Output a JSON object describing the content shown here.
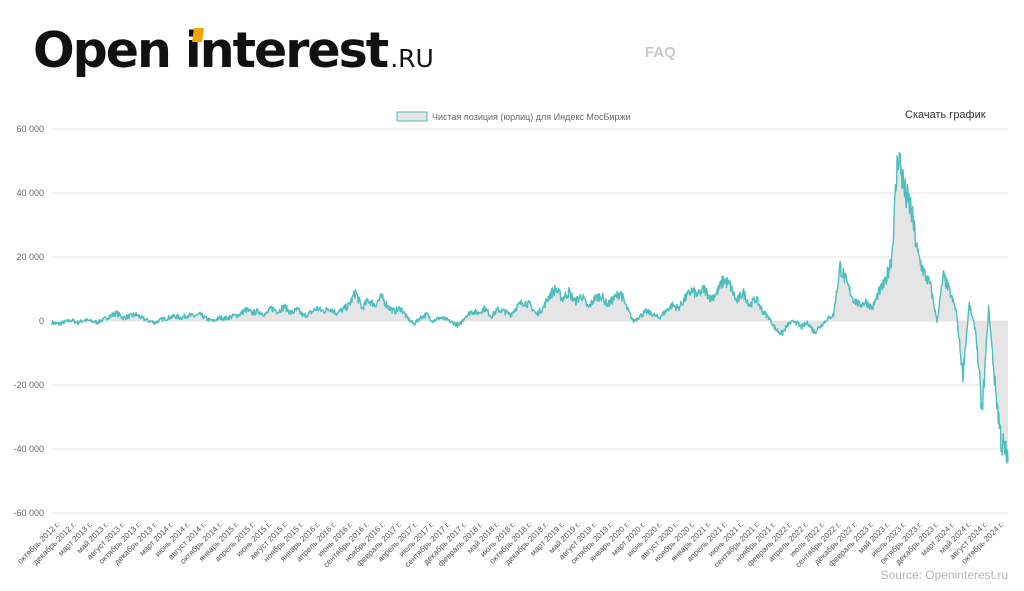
{
  "site": {
    "logo_text": "Open interest",
    "logo_suffix": ".RU",
    "nav_faq": "FAQ",
    "download_label": "Скачать график",
    "source_label": "Source: Openinterest.ru"
  },
  "colors": {
    "line": "#4dbdbd",
    "fill": "#e5e5e5",
    "grid": "#e6e6e6",
    "logo_accent": "#f5a300"
  },
  "chart_data": {
    "type": "area",
    "title": "",
    "xlabel": "",
    "ylabel": "",
    "legend": {
      "position": "top-center"
    },
    "grid": true,
    "ylim": [
      -60000,
      60000
    ],
    "y_ticks": [
      "60 000",
      "40 000",
      "20 000",
      "0",
      "-20 000",
      "-40 000",
      "-60 000"
    ],
    "x_ticks": [
      "октябрь 2012 г.",
      "декабрь 2012 г.",
      "март 2013 г.",
      "май 2013 г.",
      "август 2013 г.",
      "октябрь 2013 г.",
      "декабрь 2013 г.",
      "март 2014 г.",
      "июнь 2014 г.",
      "август 2014 г.",
      "октябрь 2014 г.",
      "январь 2015 г.",
      "апрель 2015 г.",
      "июнь 2015 г.",
      "август 2015 г.",
      "ноябрь 2015 г.",
      "январь 2016 г.",
      "апрель 2016 г.",
      "июнь 2016 г.",
      "сентябрь 2016 г.",
      "ноябрь 2016 г.",
      "февраль 2017 г.",
      "апрель 2017 г.",
      "июль 2017 г.",
      "сентябрь 2017 г.",
      "декабрь 2017 г.",
      "февраль 2018 г.",
      "май 2018 г.",
      "июль 2018 г.",
      "октябрь 2018 г.",
      "декабрь 2018 г.",
      "март 2019 г.",
      "май 2019 г.",
      "август 2019 г.",
      "октябрь 2019 г.",
      "январь 2020 г.",
      "март 2020 г.",
      "июнь 2020 г.",
      "август 2020 г.",
      "ноябрь 2020 г.",
      "январь 2021 г.",
      "апрель 2021 г.",
      "июнь 2021 г.",
      "сентябрь 2021 г.",
      "ноябрь 2021 г.",
      "февраль 2022 г.",
      "апрель 2022 г.",
      "июль 2022 г.",
      "сентябрь 2022 г.",
      "декабрь 2022 г.",
      "февраль 2023 г.",
      "май 2023 г.",
      "июль 2023 г.",
      "октябрь 2023 г.",
      "декабрь 2023 г.",
      "март 2024 г.",
      "май 2024 г.",
      "август 2024 г.",
      "октябрь 2024 г."
    ],
    "series": [
      {
        "name": "Чистая позиция (юрлиц) для Индекс МосБиржи",
        "points": [
          [
            "2012-09",
            -500
          ],
          [
            "2012-10",
            -1000
          ],
          [
            "2012-11",
            -300
          ],
          [
            "2012-12",
            200
          ],
          [
            "2013-01",
            -500
          ],
          [
            "2013-02",
            300
          ],
          [
            "2013-03",
            0
          ],
          [
            "2013-04",
            -400
          ],
          [
            "2013-05",
            500
          ],
          [
            "2013-06",
            1500
          ],
          [
            "2013-07",
            2500
          ],
          [
            "2013-08",
            1000
          ],
          [
            "2013-09",
            1500
          ],
          [
            "2013-10",
            2000
          ],
          [
            "2013-11",
            800
          ],
          [
            "2013-12",
            0
          ],
          [
            "2014-01",
            -500
          ],
          [
            "2014-02",
            500
          ],
          [
            "2014-03",
            1000
          ],
          [
            "2014-04",
            1500
          ],
          [
            "2014-05",
            1000
          ],
          [
            "2014-06",
            1800
          ],
          [
            "2014-07",
            1500
          ],
          [
            "2014-08",
            2000
          ],
          [
            "2014-09",
            500
          ],
          [
            "2014-10",
            0
          ],
          [
            "2014-11",
            1000
          ],
          [
            "2014-12",
            800
          ],
          [
            "2015-01",
            1500
          ],
          [
            "2015-02",
            2000
          ],
          [
            "2015-03",
            3500
          ],
          [
            "2015-04",
            2500
          ],
          [
            "2015-05",
            3000
          ],
          [
            "2015-06",
            2000
          ],
          [
            "2015-07",
            4000
          ],
          [
            "2015-08",
            3000
          ],
          [
            "2015-09",
            4500
          ],
          [
            "2015-10",
            2500
          ],
          [
            "2015-11",
            3500
          ],
          [
            "2015-12",
            1500
          ],
          [
            "2016-01",
            2500
          ],
          [
            "2016-02",
            4000
          ],
          [
            "2016-03",
            3000
          ],
          [
            "2016-04",
            4000
          ],
          [
            "2016-05",
            2500
          ],
          [
            "2016-06",
            3500
          ],
          [
            "2016-07",
            5000
          ],
          [
            "2016-08",
            9000
          ],
          [
            "2016-09",
            4000
          ],
          [
            "2016-10",
            6500
          ],
          [
            "2016-11",
            5000
          ],
          [
            "2016-12",
            7500
          ],
          [
            "2017-01",
            4500
          ],
          [
            "2017-02",
            3000
          ],
          [
            "2017-03",
            4000
          ],
          [
            "2017-04",
            1000
          ],
          [
            "2017-05",
            -1000
          ],
          [
            "2017-06",
            1000
          ],
          [
            "2017-07",
            2000
          ],
          [
            "2017-08",
            0
          ],
          [
            "2017-09",
            1000
          ],
          [
            "2017-10",
            500
          ],
          [
            "2017-11",
            -500
          ],
          [
            "2017-12",
            -1500
          ],
          [
            "2018-01",
            1500
          ],
          [
            "2018-02",
            3000
          ],
          [
            "2018-03",
            2500
          ],
          [
            "2018-04",
            4000
          ],
          [
            "2018-05",
            1500
          ],
          [
            "2018-06",
            3500
          ],
          [
            "2018-07",
            3000
          ],
          [
            "2018-08",
            2000
          ],
          [
            "2018-09",
            4500
          ],
          [
            "2018-10",
            6000
          ],
          [
            "2018-11",
            5000
          ],
          [
            "2018-12",
            2000
          ],
          [
            "2019-01",
            4000
          ],
          [
            "2019-02",
            8000
          ],
          [
            "2019-03",
            10000
          ],
          [
            "2019-04",
            7000
          ],
          [
            "2019-05",
            9000
          ],
          [
            "2019-06",
            6000
          ],
          [
            "2019-07",
            8000
          ],
          [
            "2019-08",
            4000
          ],
          [
            "2019-09",
            7000
          ],
          [
            "2019-10",
            8000
          ],
          [
            "2019-11",
            5000
          ],
          [
            "2019-12",
            7000
          ],
          [
            "2020-01",
            9000
          ],
          [
            "2020-02",
            4000
          ],
          [
            "2020-03",
            0
          ],
          [
            "2020-04",
            1500
          ],
          [
            "2020-05",
            3000
          ],
          [
            "2020-06",
            2000
          ],
          [
            "2020-07",
            1000
          ],
          [
            "2020-08",
            3000
          ],
          [
            "2020-09",
            5000
          ],
          [
            "2020-10",
            4000
          ],
          [
            "2020-11",
            7000
          ],
          [
            "2020-12",
            9500
          ],
          [
            "2021-01",
            8000
          ],
          [
            "2021-02",
            10000
          ],
          [
            "2021-03",
            7000
          ],
          [
            "2021-04",
            9000
          ],
          [
            "2021-05",
            13000
          ],
          [
            "2021-06",
            11000
          ],
          [
            "2021-07",
            6000
          ],
          [
            "2021-08",
            9000
          ],
          [
            "2021-09",
            5000
          ],
          [
            "2021-10",
            7000
          ],
          [
            "2021-11",
            3000
          ],
          [
            "2021-12",
            1000
          ],
          [
            "2022-01",
            -2500
          ],
          [
            "2022-02",
            -4000
          ],
          [
            "2022-03",
            -1000
          ],
          [
            "2022-04",
            0
          ],
          [
            "2022-05",
            -2000
          ],
          [
            "2022-06",
            -500
          ],
          [
            "2022-07",
            -3500
          ],
          [
            "2022-08",
            -1500
          ],
          [
            "2022-09",
            500
          ],
          [
            "2022-10",
            2000
          ],
          [
            "2022-11",
            17000
          ],
          [
            "2022-12",
            12000
          ],
          [
            "2023-01",
            7000
          ],
          [
            "2023-02",
            5000
          ],
          [
            "2023-03",
            6000
          ],
          [
            "2023-04",
            4000
          ],
          [
            "2023-05",
            9000
          ],
          [
            "2023-06",
            12000
          ],
          [
            "2023-07",
            20000
          ],
          [
            "2023-08",
            53000
          ],
          [
            "2023-09",
            40000
          ],
          [
            "2023-10",
            35000
          ],
          [
            "2023-11",
            21000
          ],
          [
            "2023-12",
            15000
          ],
          [
            "2024-01",
            11000
          ],
          [
            "2024-02",
            0
          ],
          [
            "2024-03",
            14000
          ],
          [
            "2024-04",
            9000
          ],
          [
            "2024-05",
            3000
          ],
          [
            "2024-06",
            -17000
          ],
          [
            "2024-07",
            5000
          ],
          [
            "2024-08",
            -3000
          ],
          [
            "2024-09",
            -29000
          ],
          [
            "2024-10",
            4000
          ],
          [
            "2024-11",
            -20000
          ],
          [
            "2024-12",
            -38000
          ],
          [
            "2025-01",
            -44000
          ]
        ]
      }
    ]
  }
}
